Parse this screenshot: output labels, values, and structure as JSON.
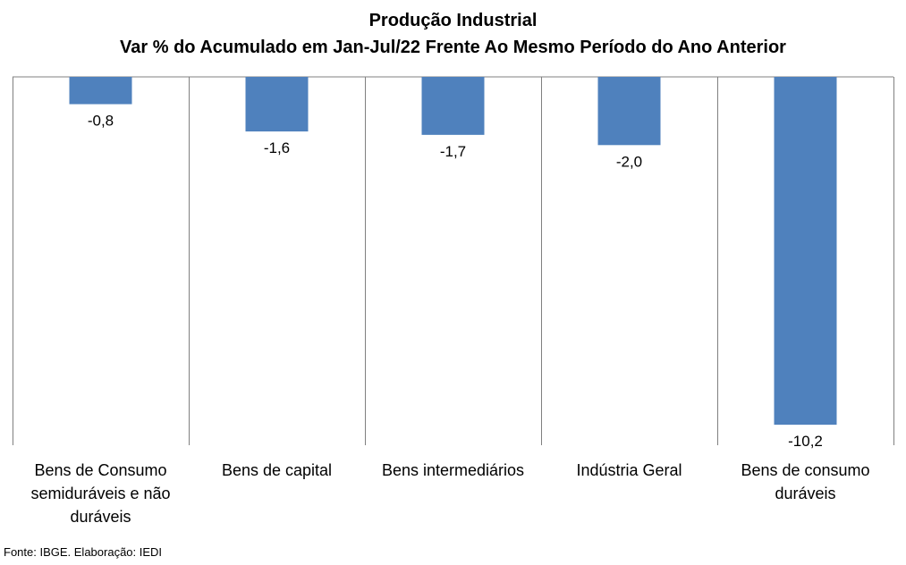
{
  "chart_data": {
    "type": "bar",
    "title": "Produção Industrial",
    "subtitle": "Var % do Acumulado em Jan-Jul/22 Frente Ao Mesmo Período do Ano Anterior",
    "categories": [
      "Bens de Consumo semiduráveis e não duráveis",
      "Bens de capital",
      "Bens intermediários",
      "Indústria Geral",
      "Bens de consumo duráveis"
    ],
    "category_lines": [
      [
        "Bens de Consumo",
        "semiduráveis e não",
        "duráveis"
      ],
      [
        "Bens de capital"
      ],
      [
        "Bens intermediários"
      ],
      [
        "Indústria Geral"
      ],
      [
        "Bens de consumo",
        "duráveis"
      ]
    ],
    "values": [
      -0.8,
      -1.6,
      -1.7,
      -2.0,
      -10.2
    ],
    "value_labels": [
      "-0,8",
      "-1,6",
      "-1,7",
      "-2,0",
      "-10,2"
    ],
    "ylim": [
      -10.8,
      0
    ],
    "bar_color": "#4F81BD",
    "grid": false
  },
  "source": "Fonte: IBGE. Elaboração: IEDI"
}
